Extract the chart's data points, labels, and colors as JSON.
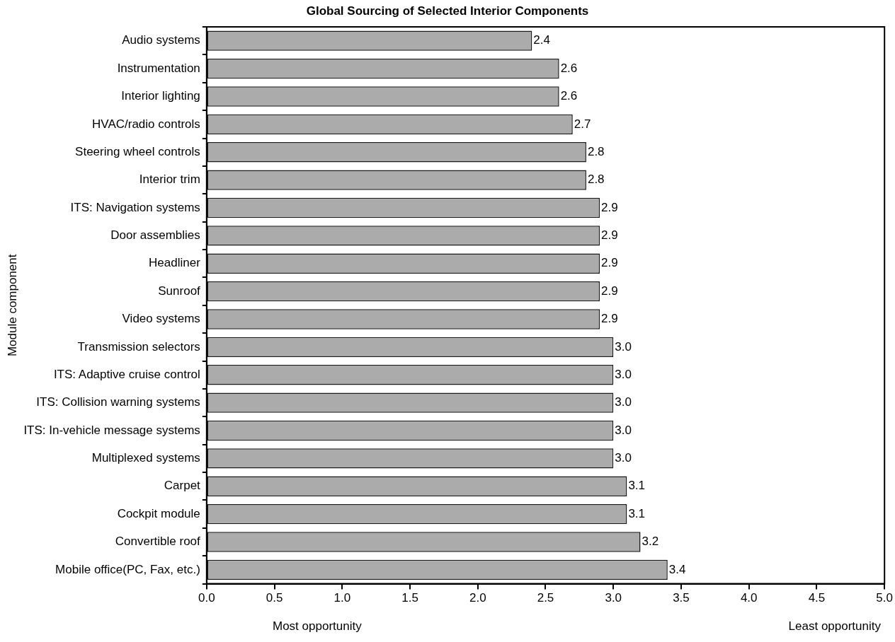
{
  "chart_data": {
    "type": "bar",
    "orientation": "horizontal",
    "title": "Global Sourcing of Selected Interior Components",
    "ylabel": "Module component",
    "categories": [
      "Audio systems",
      "Instrumentation",
      "Interior lighting",
      "HVAC/radio controls",
      "Steering wheel controls",
      "Interior trim",
      "ITS: Navigation systems",
      "Door assemblies",
      "Headliner",
      "Sunroof",
      "Video systems",
      "Transmission selectors",
      "ITS: Adaptive cruise control",
      "ITS: Collision warning systems",
      "ITS: In-vehicle message systems",
      "Multiplexed systems",
      "Carpet",
      "Cockpit module",
      "Convertible roof",
      "Mobile office(PC, Fax, etc.)"
    ],
    "values": [
      2.4,
      2.6,
      2.6,
      2.7,
      2.8,
      2.8,
      2.9,
      2.9,
      2.9,
      2.9,
      2.9,
      3.0,
      3.0,
      3.0,
      3.0,
      3.0,
      3.1,
      3.1,
      3.2,
      3.4
    ],
    "value_labels": [
      "2.4",
      "2.6",
      "2.6",
      "2.7",
      "2.8",
      "2.8",
      "2.9",
      "2.9",
      "2.9",
      "2.9",
      "2.9",
      "3.0",
      "3.0",
      "3.0",
      "3.0",
      "3.0",
      "3.1",
      "3.1",
      "3.2",
      "3.4"
    ],
    "color": "#ababab",
    "xlim": [
      0,
      5
    ],
    "xticks": [
      {
        "value": 0,
        "label": "0.0"
      },
      {
        "value": 0.5,
        "label": "0.5"
      },
      {
        "value": 1,
        "label": "1.0"
      },
      {
        "value": 1.5,
        "label": "1.5"
      },
      {
        "value": 2,
        "label": "2.0"
      },
      {
        "value": 2.5,
        "label": "2.5"
      },
      {
        "value": 3,
        "label": "3.0"
      },
      {
        "value": 3.5,
        "label": "3.5"
      },
      {
        "value": 4,
        "label": "4.0"
      },
      {
        "value": 4.5,
        "label": "4.5"
      },
      {
        "value": 5,
        "label": "5.0"
      }
    ],
    "annotations": [
      "Most opportunity",
      "Least opportunity"
    ],
    "grid": false,
    "legend": false
  }
}
